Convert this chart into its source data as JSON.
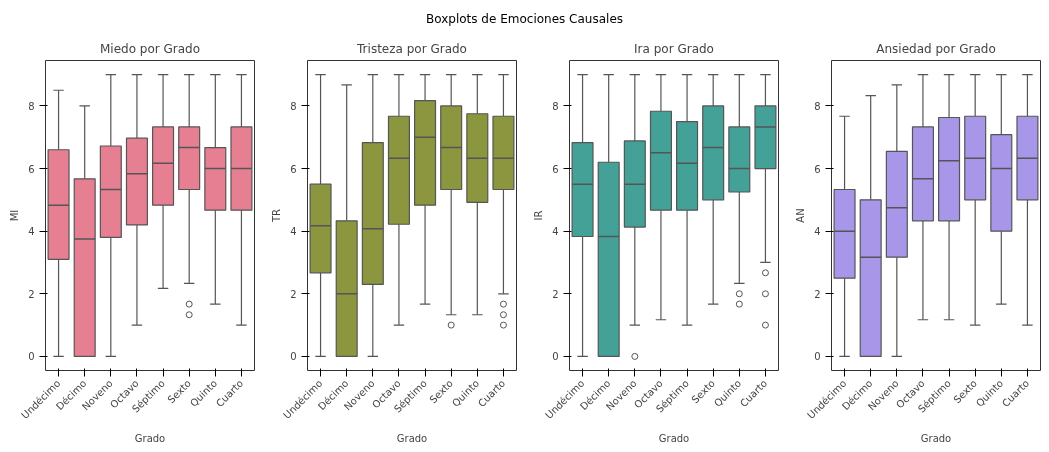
{
  "chart_data": [
    {
      "type": "box",
      "title": "Miedo por Grado",
      "xlabel": "Grado",
      "ylabel": "MI",
      "annotations": [
        "Boxplots de Emociones Causales"
      ],
      "color": "#e67f91",
      "grid": false,
      "ylim": [
        -0.45,
        9.45
      ],
      "yticks": [
        0,
        2,
        4,
        6,
        8
      ],
      "categories": [
        "Undécimo",
        "Décimo",
        "Noveno",
        "Octavo",
        "Séptimo",
        "Sexto",
        "Quinto",
        "Cuarto"
      ],
      "boxes": [
        {
          "low": 0,
          "q1": 3.1,
          "median": 4.83,
          "q3": 6.6,
          "high": 8.5
        },
        {
          "low": 0,
          "q1": 0,
          "median": 3.75,
          "q3": 5.67,
          "high": 8
        },
        {
          "low": 0,
          "q1": 3.8,
          "median": 5.33,
          "q3": 6.72,
          "high": 9
        },
        {
          "low": 1,
          "q1": 4.2,
          "median": 5.83,
          "q3": 6.97,
          "high": 9
        },
        {
          "low": 2.17,
          "q1": 4.83,
          "median": 6.17,
          "q3": 7.33,
          "high": 9
        },
        {
          "low": 2.33,
          "q1": 5.33,
          "median": 6.67,
          "q3": 7.33,
          "high": 9,
          "outliers": [
            1.67,
            1.33
          ]
        },
        {
          "low": 1.67,
          "q1": 4.67,
          "median": 6,
          "q3": 6.67,
          "high": 9
        },
        {
          "low": 1,
          "q1": 4.67,
          "median": 6,
          "q3": 7.33,
          "high": 9
        }
      ]
    },
    {
      "type": "box",
      "title": "Tristeza por Grado",
      "xlabel": "Grado",
      "ylabel": "TR",
      "color": "#8c963f",
      "grid": false,
      "ylim": [
        -0.45,
        9.45
      ],
      "yticks": [
        0,
        2,
        4,
        6,
        8
      ],
      "categories": [
        "Undécimo",
        "Décimo",
        "Noveno",
        "Octavo",
        "Séptimo",
        "Sexto",
        "Quinto",
        "Cuarto"
      ],
      "boxes": [
        {
          "low": 0,
          "q1": 2.67,
          "median": 4.17,
          "q3": 5.5,
          "high": 9
        },
        {
          "low": 0,
          "q1": 0,
          "median": 2,
          "q3": 4.33,
          "high": 8.67
        },
        {
          "low": 0,
          "q1": 2.3,
          "median": 4.08,
          "q3": 6.83,
          "high": 9
        },
        {
          "low": 1,
          "q1": 4.22,
          "median": 6.33,
          "q3": 7.67,
          "high": 9
        },
        {
          "low": 1.67,
          "q1": 4.83,
          "median": 7,
          "q3": 8.17,
          "high": 9
        },
        {
          "low": 1.33,
          "q1": 5.33,
          "median": 6.67,
          "q3": 8,
          "high": 9,
          "outliers": [
            1
          ]
        },
        {
          "low": 1.33,
          "q1": 4.92,
          "median": 6.33,
          "q3": 7.75,
          "high": 9
        },
        {
          "low": 2,
          "q1": 5.33,
          "median": 6.33,
          "q3": 7.67,
          "high": 9,
          "outliers": [
            1.67,
            1.33,
            1
          ]
        }
      ]
    },
    {
      "type": "box",
      "title": "Ira por Grado",
      "xlabel": "Grado",
      "ylabel": "IR",
      "color": "#44a198",
      "grid": false,
      "ylim": [
        -0.45,
        9.45
      ],
      "yticks": [
        0,
        2,
        4,
        6,
        8
      ],
      "categories": [
        "Undécimo",
        "Décimo",
        "Noveno",
        "Octavo",
        "Séptimo",
        "Sexto",
        "Quinto",
        "Cuarto"
      ],
      "boxes": [
        {
          "low": 0,
          "q1": 3.83,
          "median": 5.5,
          "q3": 6.83,
          "high": 9
        },
        {
          "low": 0,
          "q1": 0,
          "median": 3.83,
          "q3": 6.2,
          "high": 9
        },
        {
          "low": 1,
          "q1": 4.13,
          "median": 5.5,
          "q3": 6.88,
          "high": 9,
          "outliers": [
            0
          ]
        },
        {
          "low": 1.17,
          "q1": 4.67,
          "median": 6.5,
          "q3": 7.83,
          "high": 9
        },
        {
          "low": 1,
          "q1": 4.67,
          "median": 6.17,
          "q3": 7.5,
          "high": 9
        },
        {
          "low": 1.67,
          "q1": 5,
          "median": 6.67,
          "q3": 8,
          "high": 9
        },
        {
          "low": 2.33,
          "q1": 5.25,
          "median": 6,
          "q3": 7.33,
          "high": 9,
          "outliers": [
            2,
            1.67
          ]
        },
        {
          "low": 3,
          "q1": 6,
          "median": 7.33,
          "q3": 8,
          "high": 9,
          "outliers": [
            2.67,
            2,
            1
          ]
        }
      ]
    },
    {
      "type": "box",
      "title": "Ansiedad por Grado",
      "xlabel": "Grado",
      "ylabel": "AN",
      "color": "#a896e8",
      "grid": false,
      "ylim": [
        -0.45,
        9.45
      ],
      "yticks": [
        0,
        2,
        4,
        6,
        8
      ],
      "categories": [
        "Undécimo",
        "Décimo",
        "Noveno",
        "Octavo",
        "Séptimo",
        "Sexto",
        "Quinto",
        "Cuarto"
      ],
      "boxes": [
        {
          "low": 0,
          "q1": 2.5,
          "median": 4,
          "q3": 5.33,
          "high": 7.67
        },
        {
          "low": 0,
          "q1": 0,
          "median": 3.17,
          "q3": 5,
          "high": 8.33
        },
        {
          "low": 0,
          "q1": 3.17,
          "median": 4.75,
          "q3": 6.55,
          "high": 8.67
        },
        {
          "low": 1.17,
          "q1": 4.33,
          "median": 5.67,
          "q3": 7.33,
          "high": 9
        },
        {
          "low": 1.17,
          "q1": 4.33,
          "median": 6.25,
          "q3": 7.63,
          "high": 9
        },
        {
          "low": 1,
          "q1": 5,
          "median": 6.33,
          "q3": 7.67,
          "high": 9
        },
        {
          "low": 1.67,
          "q1": 4,
          "median": 6,
          "q3": 7.08,
          "high": 9
        },
        {
          "low": 1,
          "q1": 5,
          "median": 6.33,
          "q3": 7.67,
          "high": 9
        }
      ]
    }
  ]
}
